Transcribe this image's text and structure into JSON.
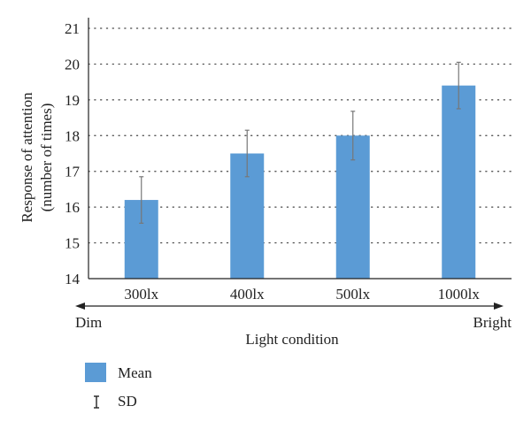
{
  "chart_data": {
    "type": "bar",
    "categories": [
      "300lx",
      "400lx",
      "500lx",
      "1000lx"
    ],
    "series": [
      {
        "name": "Mean",
        "values": [
          16.2,
          17.5,
          18.0,
          19.4
        ],
        "sd": [
          0.65,
          0.65,
          0.68,
          0.65
        ]
      }
    ],
    "ylabel_line1": "Response of attention",
    "ylabel_line2": "(number of times)",
    "xlabel": "Light condition",
    "ylim": [
      14,
      21
    ],
    "yticks": [
      "14",
      "15",
      "16",
      "17",
      "18",
      "19",
      "20",
      "21"
    ],
    "axis_arrow": {
      "left_label": "Dim",
      "right_label": "Bright"
    },
    "legend": {
      "mean_label": "Mean",
      "sd_label": "SD"
    },
    "gridlines": "dotted",
    "colors": {
      "bar": "#5b9bd5",
      "error_bar": "#777777",
      "axis": "#222222"
    }
  }
}
